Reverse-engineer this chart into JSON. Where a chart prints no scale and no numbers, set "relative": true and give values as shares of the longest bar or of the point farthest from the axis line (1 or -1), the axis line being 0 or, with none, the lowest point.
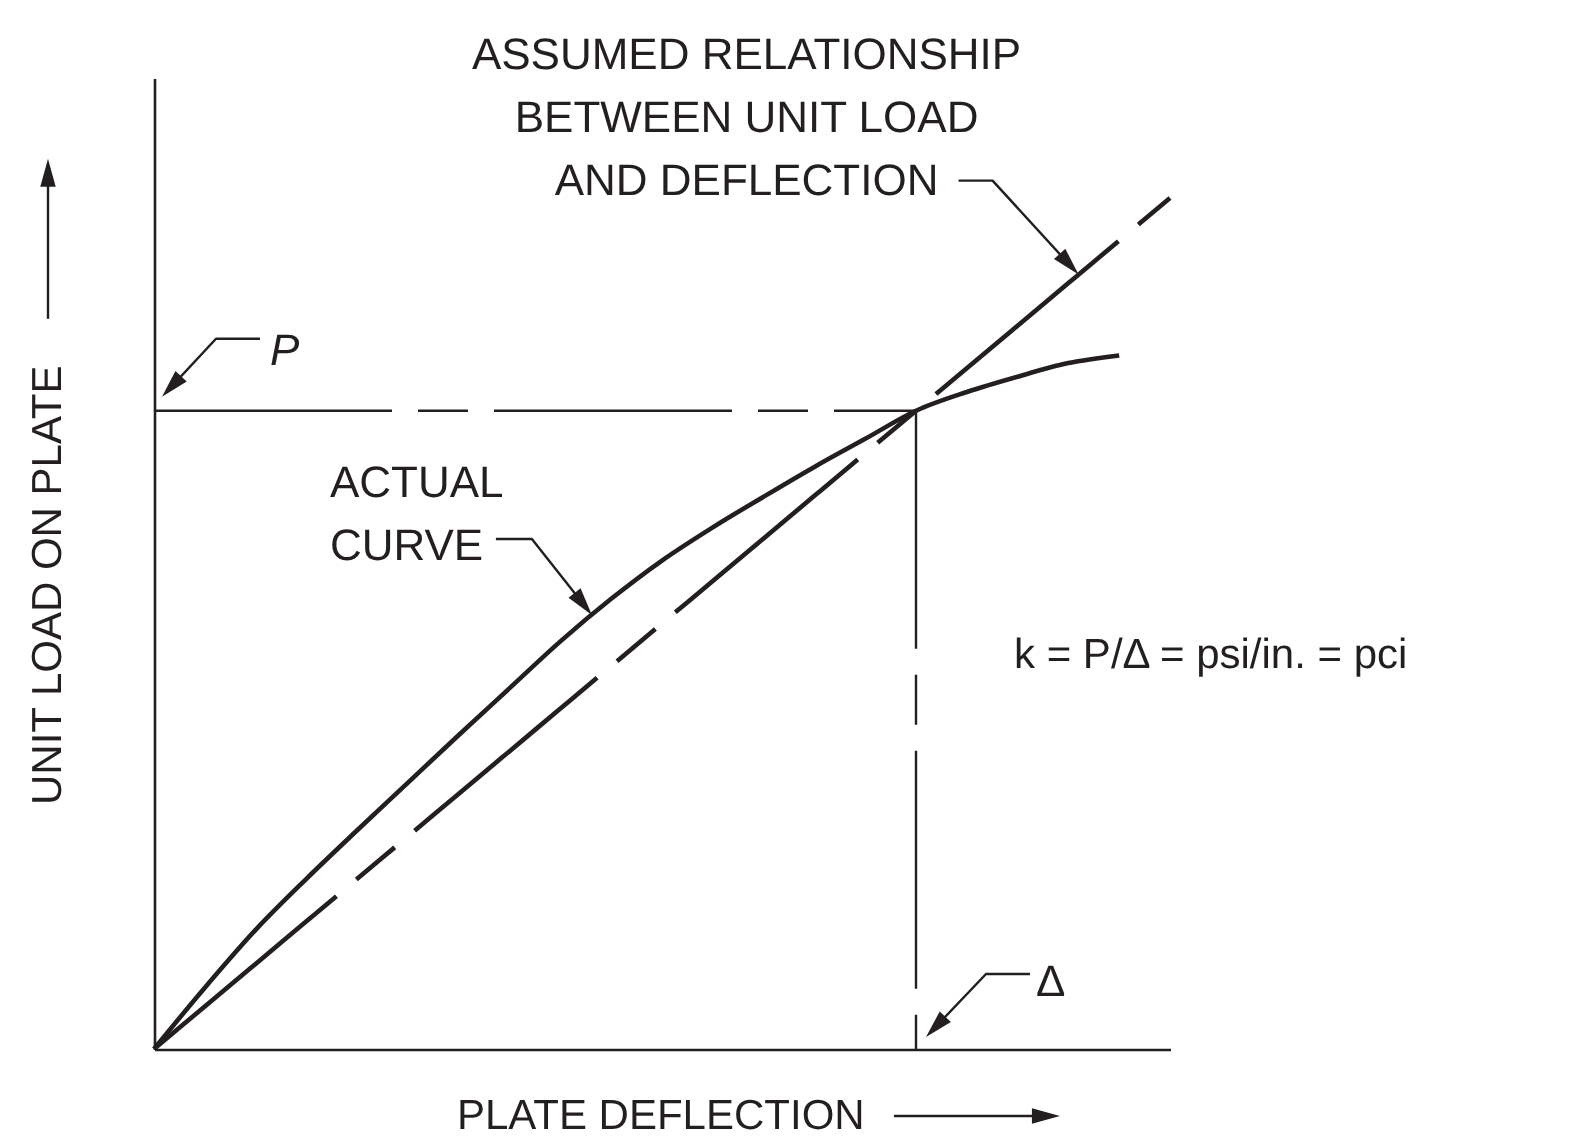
{
  "chart_data": {
    "type": "line",
    "xlabel": "PLATE DEFLECTION",
    "ylabel": "UNIT LOAD ON PLATE",
    "relative": true,
    "categories": [
      null,
      null,
      null,
      null,
      null,
      null,
      null,
      null,
      null,
      null,
      null,
      null,
      null,
      null,
      null,
      null,
      null,
      null,
      null,
      null,
      null
    ],
    "series": [
      {
        "color": "#231f20",
        "line_style": "solid",
        "values": [
          0,
          0.072,
          0.14,
          0.2,
          0.257,
          0.313,
          0.369,
          0.424,
          0.479,
          0.529,
          0.574,
          0.613,
          0.649,
          0.684,
          0.717,
          0.75,
          0.772,
          0.79,
          0.806,
          0.815,
          null
        ]
      },
      {
        "color": "#231f20",
        "line_style": "dashed",
        "values": [
          0,
          0.05,
          0.1,
          0.15,
          0.2,
          0.25,
          0.3,
          0.35,
          0.4,
          0.45,
          0.5,
          0.55,
          0.6,
          0.65,
          0.7,
          0.75,
          0.8,
          0.85,
          0.9,
          0.95,
          1.0
        ]
      }
    ],
    "ref_lines": [
      {
        "axis": "y",
        "value": 0.75,
        "line_style": "dashed"
      }
    ],
    "annotations": [
      "ASSUMED RELATIONSHIP BETWEEN UNIT LOAD AND DEFLECTION",
      "ACTUAL CURVE",
      "P",
      "Δ",
      "k = P/Δ = psi/in. = pci"
    ],
    "grid": false,
    "legend": false,
    "tick_labels": false
  }
}
